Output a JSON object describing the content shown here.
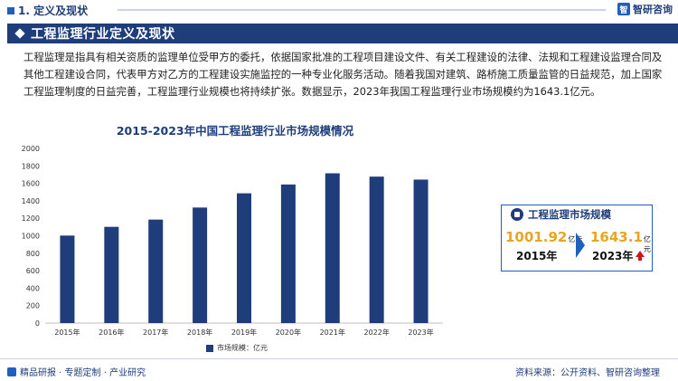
{
  "header": {
    "section_label": "1. 定义及现状",
    "brand_name": "智研咨询",
    "brand_logo_char": "智"
  },
  "title_band": {
    "title": "工程监理行业定义及现状"
  },
  "intro": {
    "text": "工程监理是指具有相关资质的监理单位受甲方的委托，依据国家批准的工程项目建设文件、有关工程建设的法律、法规和工程建设监理合同及其他工程建设合同，代表甲方对乙方的工程建设实施监控的一种专业化服务活动。随着我国对建筑、路桥施工质量监管的日益规范，加上国家工程监理制度的日益完善，工程监理行业规模也将持续扩张。数据显示，2023年我国工程监理行业市场规模约为1643.1亿元。"
  },
  "chart_data": {
    "type": "bar",
    "title": "2015-2023年中国工程监理行业市场规模情况",
    "categories": [
      "2015年",
      "2016年",
      "2017年",
      "2018年",
      "2019年",
      "2020年",
      "2021年",
      "2022年",
      "2023年"
    ],
    "series": [
      {
        "name": "市场规模：亿元",
        "values": [
          1002,
          1102,
          1185,
          1323,
          1486,
          1587,
          1715,
          1677,
          1643
        ]
      }
    ],
    "ylim": [
      0,
      2000
    ],
    "yticks": [
      0,
      200,
      400,
      600,
      800,
      1000,
      1200,
      1400,
      1600,
      1800,
      2000
    ],
    "xlabel": "",
    "ylabel": "",
    "grid": false,
    "legend_position": "bottom",
    "bar_color": "#1f3d7a"
  },
  "side_panel": {
    "header": "工程监理市场规模",
    "left_value": "1001.92",
    "left_unit": "亿元",
    "left_year": "2015年",
    "right_value": "1643.1",
    "right_unit": "亿元",
    "right_year": "2023年",
    "value_color": "#e8a51e",
    "up_arrow_color": "#d0161b"
  },
  "footer": {
    "left_text": "精品研报 · 专题定制 · 产业研究",
    "right_text": "资料来源：公开资料、智研咨询整理"
  },
  "colors": {
    "primary": "#1f3d7a",
    "accent": "#1f5fbf"
  }
}
